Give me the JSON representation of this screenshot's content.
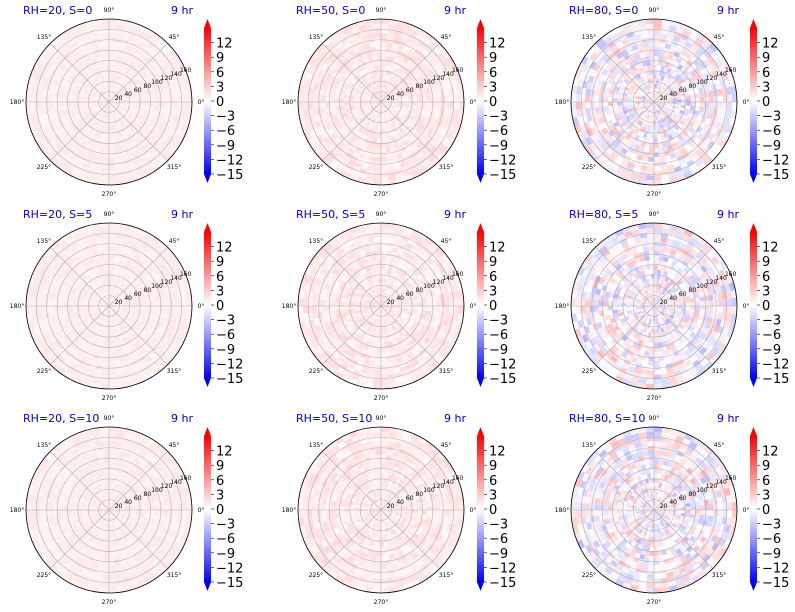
{
  "chart_data": {
    "type": "heatmap",
    "projection": "polar",
    "grid": true,
    "radial_ticks": [
      20,
      40,
      60,
      80,
      100,
      120,
      140,
      160
    ],
    "radial_max": 160,
    "angle_ticks": [
      "0°",
      "45°",
      "90°",
      "135°",
      "180°",
      "225°",
      "270°",
      "315°"
    ],
    "colorbar": {
      "colormap": "bwr",
      "range": [
        -15,
        15
      ],
      "ticks": [
        "12",
        "9",
        "6",
        "3",
        "0",
        "−3",
        "−6",
        "−9",
        "−12",
        "−15"
      ],
      "extend": "both",
      "color_low": "#0000ff",
      "color_mid": "#ffffff",
      "color_high": "#ff0000"
    },
    "panels": [
      {
        "title": "RH=20, S=0",
        "time_label": "9 hr",
        "mean_value": 1.0,
        "spread": 0.6
      },
      {
        "title": "RH=50, S=0",
        "time_label": "9 hr",
        "mean_value": 1.2,
        "spread": 1.2
      },
      {
        "title": "RH=80, S=0",
        "time_label": "9 hr",
        "mean_value": 0.0,
        "spread": 4.5
      },
      {
        "title": "RH=20, S=5",
        "time_label": "9 hr",
        "mean_value": 1.0,
        "spread": 0.6
      },
      {
        "title": "RH=50, S=5",
        "time_label": "9 hr",
        "mean_value": 1.2,
        "spread": 1.2
      },
      {
        "title": "RH=80, S=5",
        "time_label": "9 hr",
        "mean_value": 0.0,
        "spread": 4.5
      },
      {
        "title": "RH=20, S=10",
        "time_label": "9 hr",
        "mean_value": 1.0,
        "spread": 0.6
      },
      {
        "title": "RH=50, S=10",
        "time_label": "9 hr",
        "mean_value": 1.2,
        "spread": 1.2
      },
      {
        "title": "RH=80, S=10",
        "time_label": "9 hr",
        "mean_value": 0.0,
        "spread": 4.5
      }
    ]
  }
}
